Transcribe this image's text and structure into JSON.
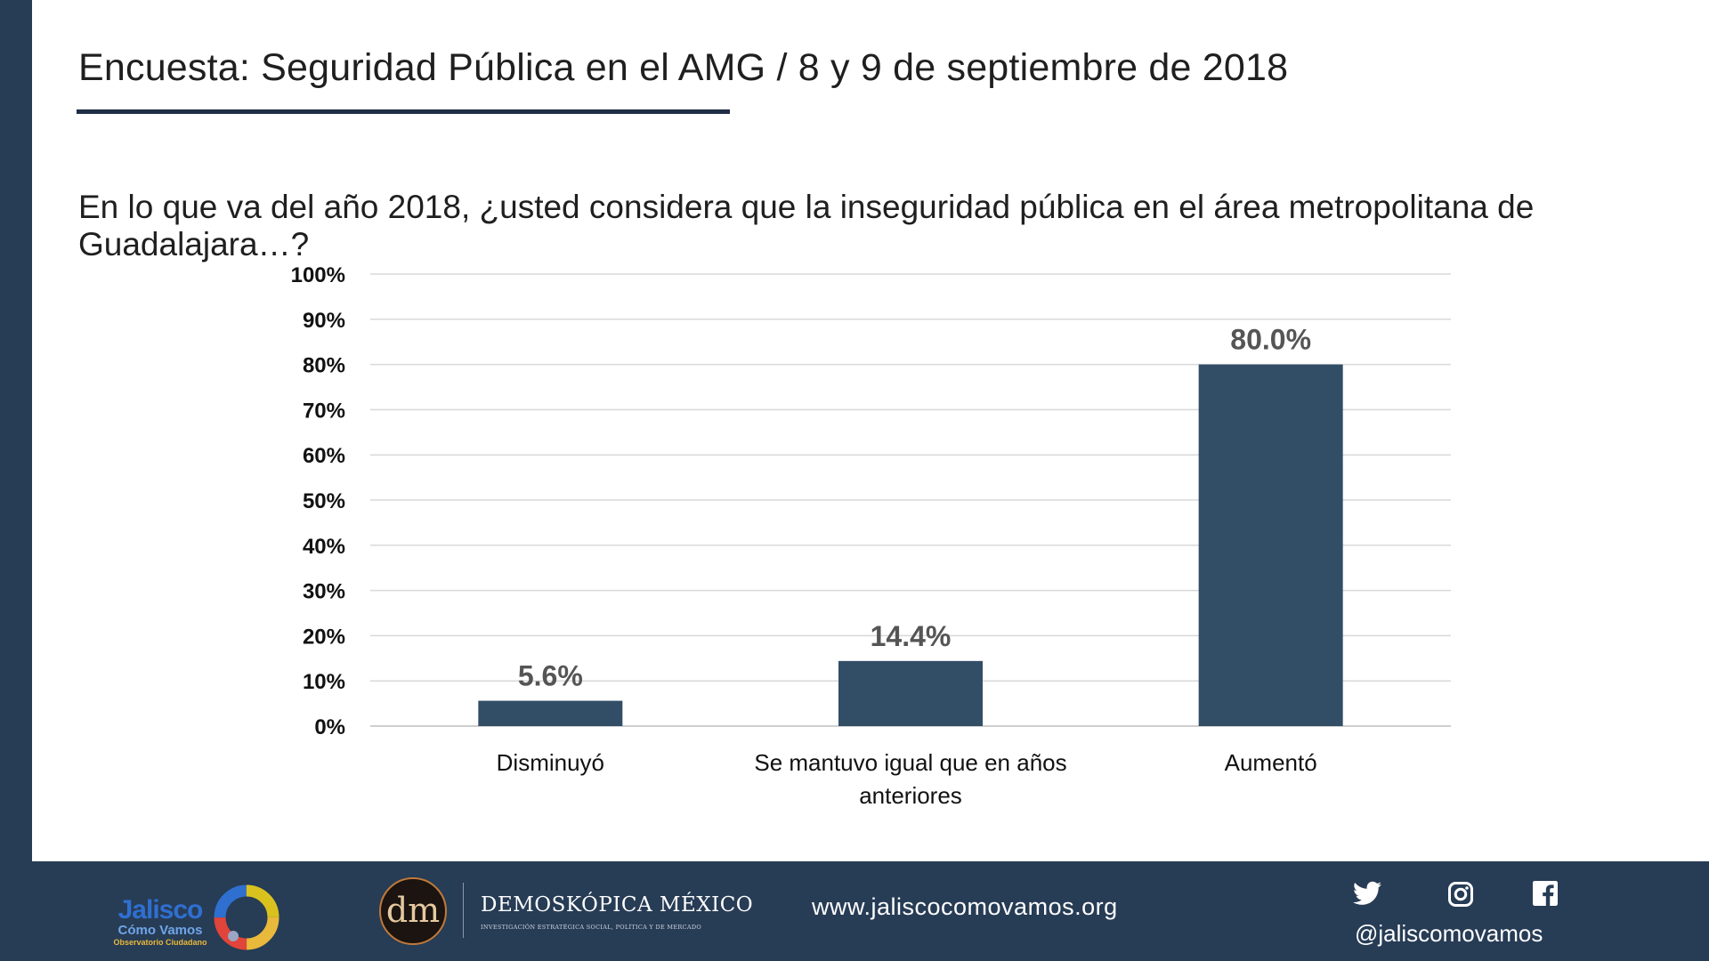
{
  "header": {
    "title": "Encuesta: Seguridad Pública en el AMG / 8 y 9 de septiembre de 2018",
    "question": "En lo que va del año 2018, ¿usted considera que la inseguridad pública en el área metropolitana de Guadalajara…?"
  },
  "chart_data": {
    "type": "bar",
    "categories": [
      [
        "Disminuyó"
      ],
      [
        "Se mantuvo igual que en años",
        "anteriores"
      ],
      [
        "Aumentó"
      ]
    ],
    "values": [
      5.6,
      14.4,
      80.0
    ],
    "data_labels": [
      "5.6%",
      "14.4%",
      "80.0%"
    ],
    "y_ticks": [
      "0%",
      "10%",
      "20%",
      "30%",
      "40%",
      "50%",
      "60%",
      "70%",
      "80%",
      "90%",
      "100%"
    ],
    "ylim": [
      0,
      100
    ],
    "grid": true,
    "bar_color": "#324d66",
    "grid_color": "#d9d9d9"
  },
  "footer": {
    "jcv_name": "Jalisco",
    "jcv_sub1": "Cómo Vamos",
    "jcv_sub2": "Observatorio Ciudadano",
    "dm_monogram": "dm",
    "dm_name": "DEMOSKÓPICA MÉXICO",
    "dm_tagline": "INVESTIGACIÓN ESTRATÉGICA SOCIAL, POLÍTICA Y DE MERCADO",
    "website": "www.jaliscocomovamos.org",
    "handle": "@jaliscomovamos",
    "icons": [
      "twitter-icon",
      "instagram-icon",
      "facebook-icon"
    ]
  }
}
